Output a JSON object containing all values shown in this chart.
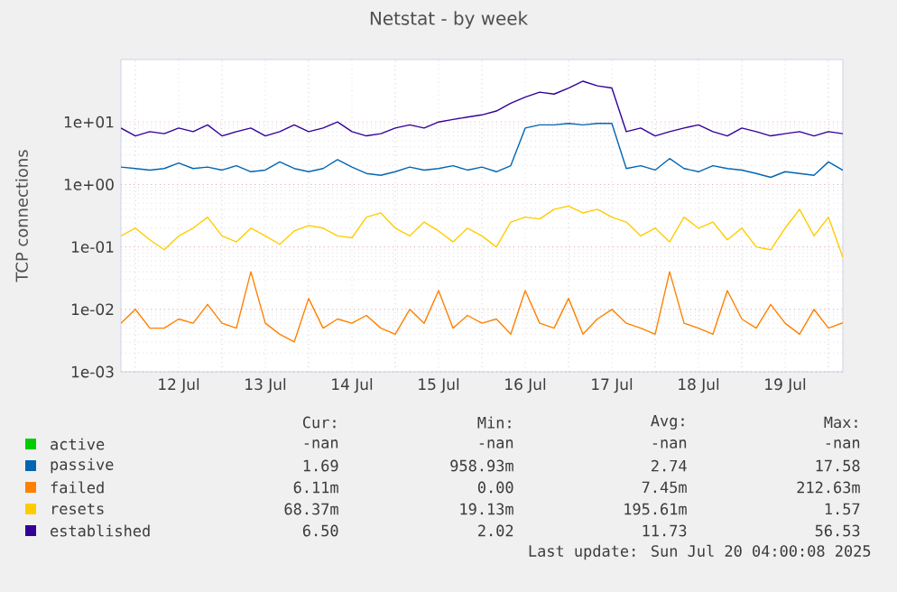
{
  "chart_data": {
    "type": "line",
    "title": "Netstat - by week",
    "ylabel": "TCP connections",
    "log": "y",
    "grid": true,
    "legend": "bottom",
    "xlim": [
      "2025-07-11T20:00",
      "2025-07-20T04:00"
    ],
    "xticks": [
      {
        "value": "2025-07-12T00:00",
        "label": null
      },
      {
        "value": "2025-07-12T12:00",
        "label": "12 Jul"
      },
      {
        "value": "2025-07-13T00:00",
        "label": null
      },
      {
        "value": "2025-07-13T12:00",
        "label": "13 Jul"
      },
      {
        "value": "2025-07-14T00:00",
        "label": null
      },
      {
        "value": "2025-07-14T12:00",
        "label": "14 Jul"
      },
      {
        "value": "2025-07-15T00:00",
        "label": null
      },
      {
        "value": "2025-07-15T12:00",
        "label": "15 Jul"
      },
      {
        "value": "2025-07-16T00:00",
        "label": null
      },
      {
        "value": "2025-07-16T12:00",
        "label": "16 Jul"
      },
      {
        "value": "2025-07-17T00:00",
        "label": null
      },
      {
        "value": "2025-07-17T12:00",
        "label": "17 Jul"
      },
      {
        "value": "2025-07-18T00:00",
        "label": null
      },
      {
        "value": "2025-07-18T12:00",
        "label": "18 Jul"
      },
      {
        "value": "2025-07-19T00:00",
        "label": null
      },
      {
        "value": "2025-07-19T12:00",
        "label": "19 Jul"
      },
      {
        "value": "2025-07-20T00:00",
        "label": null
      }
    ],
    "ylim": [
      0.001,
      100
    ],
    "yticks": [
      {
        "value": 0.001,
        "label": "1e-03"
      },
      {
        "value": 0.01,
        "label": "1e-02"
      },
      {
        "value": 0.1,
        "label": "1e-01"
      },
      {
        "value": 1,
        "label": "1e+00"
      },
      {
        "value": 10,
        "label": "1e+01"
      }
    ],
    "x": [
      "2025-07-11T20:00",
      "2025-07-12T00:00",
      "2025-07-12T04:00",
      "2025-07-12T08:00",
      "2025-07-12T12:00",
      "2025-07-12T16:00",
      "2025-07-12T20:00",
      "2025-07-13T00:00",
      "2025-07-13T04:00",
      "2025-07-13T08:00",
      "2025-07-13T12:00",
      "2025-07-13T16:00",
      "2025-07-13T20:00",
      "2025-07-14T00:00",
      "2025-07-14T04:00",
      "2025-07-14T08:00",
      "2025-07-14T12:00",
      "2025-07-14T16:00",
      "2025-07-14T20:00",
      "2025-07-15T00:00",
      "2025-07-15T04:00",
      "2025-07-15T08:00",
      "2025-07-15T12:00",
      "2025-07-15T16:00",
      "2025-07-15T20:00",
      "2025-07-16T00:00",
      "2025-07-16T04:00",
      "2025-07-16T08:00",
      "2025-07-16T12:00",
      "2025-07-16T16:00",
      "2025-07-16T20:00",
      "2025-07-17T00:00",
      "2025-07-17T04:00",
      "2025-07-17T08:00",
      "2025-07-17T12:00",
      "2025-07-17T16:00",
      "2025-07-17T20:00",
      "2025-07-18T00:00",
      "2025-07-18T04:00",
      "2025-07-18T08:00",
      "2025-07-18T12:00",
      "2025-07-18T16:00",
      "2025-07-18T20:00",
      "2025-07-19T00:00",
      "2025-07-19T04:00",
      "2025-07-19T08:00",
      "2025-07-19T12:00",
      "2025-07-19T16:00",
      "2025-07-19T20:00",
      "2025-07-20T00:00",
      "2025-07-20T04:00"
    ],
    "series": [
      {
        "name": "active",
        "color": "#00cc00",
        "values": [
          null,
          null,
          null,
          null,
          null,
          null,
          null,
          null,
          null,
          null,
          null,
          null,
          null,
          null,
          null,
          null,
          null,
          null,
          null,
          null,
          null,
          null,
          null,
          null,
          null,
          null,
          null,
          null,
          null,
          null,
          null,
          null,
          null,
          null,
          null,
          null,
          null,
          null,
          null,
          null,
          null,
          null,
          null,
          null,
          null,
          null,
          null,
          null,
          null,
          null,
          null
        ]
      },
      {
        "name": "passive",
        "color": "#0066b3",
        "values": [
          1.9,
          1.8,
          1.7,
          1.8,
          2.2,
          1.8,
          1.9,
          1.7,
          2.0,
          1.6,
          1.7,
          2.3,
          1.8,
          1.6,
          1.8,
          2.5,
          1.9,
          1.5,
          1.4,
          1.6,
          1.9,
          1.7,
          1.8,
          2.0,
          1.7,
          1.9,
          1.6,
          2.0,
          8,
          9,
          9,
          9.5,
          9,
          9.5,
          9.5,
          1.8,
          2.0,
          1.7,
          2.6,
          1.8,
          1.6,
          2.0,
          1.8,
          1.7,
          1.5,
          1.3,
          1.6,
          1.5,
          1.4,
          2.3,
          1.69
        ]
      },
      {
        "name": "failed",
        "color": "#ff8000",
        "values": [
          0.006,
          0.01,
          0.005,
          0.005,
          0.007,
          0.006,
          0.012,
          0.006,
          0.005,
          0.04,
          0.006,
          0.004,
          0.003,
          0.015,
          0.005,
          0.007,
          0.006,
          0.008,
          0.005,
          0.004,
          0.01,
          0.006,
          0.02,
          0.005,
          0.008,
          0.006,
          0.007,
          0.004,
          0.02,
          0.006,
          0.005,
          0.015,
          0.004,
          0.007,
          0.01,
          0.006,
          0.005,
          0.004,
          0.04,
          0.006,
          0.005,
          0.004,
          0.02,
          0.007,
          0.005,
          0.012,
          0.006,
          0.004,
          0.01,
          0.005,
          0.0061
        ]
      },
      {
        "name": "resets",
        "color": "#ffcc00",
        "values": [
          0.15,
          0.2,
          0.13,
          0.09,
          0.15,
          0.2,
          0.3,
          0.15,
          0.12,
          0.2,
          0.15,
          0.11,
          0.18,
          0.22,
          0.2,
          0.15,
          0.14,
          0.3,
          0.35,
          0.2,
          0.15,
          0.25,
          0.18,
          0.12,
          0.2,
          0.15,
          0.1,
          0.25,
          0.3,
          0.28,
          0.4,
          0.45,
          0.35,
          0.4,
          0.3,
          0.25,
          0.15,
          0.2,
          0.12,
          0.3,
          0.2,
          0.25,
          0.13,
          0.2,
          0.1,
          0.09,
          0.2,
          0.4,
          0.15,
          0.3,
          0.068
        ]
      },
      {
        "name": "established",
        "color": "#330099",
        "values": [
          8,
          6,
          7,
          6.5,
          8,
          7,
          9,
          6,
          7,
          8,
          6,
          7,
          9,
          7,
          8,
          10,
          7,
          6,
          6.5,
          8,
          9,
          8,
          10,
          11,
          12,
          13,
          15,
          20,
          25,
          30,
          28,
          35,
          45,
          38,
          35,
          7,
          8,
          6,
          7,
          8,
          9,
          7,
          6,
          8,
          7,
          6,
          6.5,
          7,
          6,
          7,
          6.5
        ]
      }
    ],
    "annotations": [
      "Cur:",
      "Min:",
      "Avg:",
      "Max:",
      "-nan",
      "-nan",
      "-nan",
      "-nan",
      "1.69",
      "958.93m",
      "2.74",
      "17.58",
      "6.11m",
      "0.00",
      "7.45m",
      "212.63m",
      "68.37m",
      "19.13m",
      "195.61m",
      "1.57",
      "6.50",
      "2.02",
      "11.73",
      "56.53",
      "Last update: Sun Jul 20 04:00:08 2025"
    ]
  }
}
